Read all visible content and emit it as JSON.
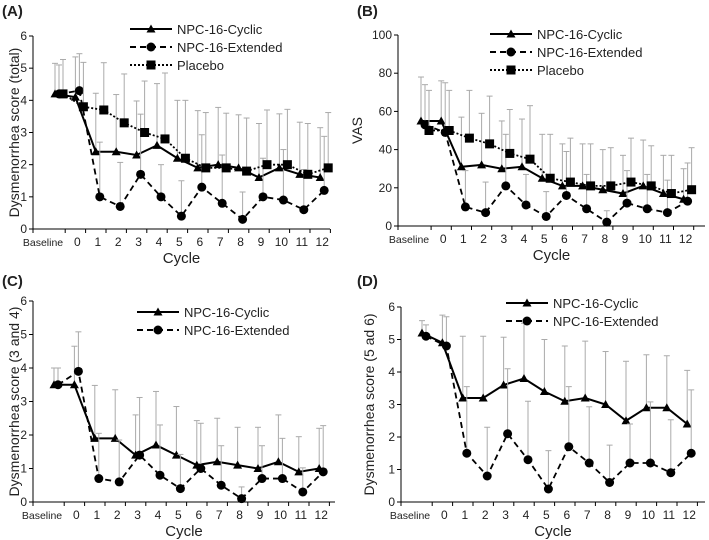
{
  "chart_data": [
    {
      "panel_label": "(A)",
      "type": "line",
      "title": "",
      "xlabel": "Cycle",
      "ylabel": "Dysmenorrhea score (total)",
      "ylim": [
        0,
        6
      ],
      "yticks": [
        0,
        1,
        2,
        3,
        4,
        5,
        6
      ],
      "categories": [
        "Baseline",
        "0",
        "1",
        "2",
        "3",
        "4",
        "5",
        "6",
        "7",
        "8",
        "9",
        "10",
        "11",
        "12"
      ],
      "legend_position": "top-right",
      "series": [
        {
          "name": "NPC-16-Cyclic",
          "marker": "triangle",
          "line": "solid",
          "values": [
            4.2,
            4.1,
            2.4,
            2.4,
            2.3,
            2.6,
            2.2,
            1.9,
            2.0,
            1.9,
            1.6,
            1.9,
            1.7,
            1.6
          ],
          "error_upper": [
            5.15,
            5.35,
            4.22,
            4.18,
            3.98,
            4.52,
            4.0,
            3.68,
            3.78,
            3.55,
            3.28,
            3.58,
            3.32,
            3.15
          ]
        },
        {
          "name": "NPC-16-Extended",
          "marker": "circle",
          "line": "dashed",
          "values": [
            4.2,
            4.3,
            1.0,
            0.7,
            1.7,
            1.0,
            0.4,
            1.3,
            0.8,
            0.3,
            1.0,
            0.9,
            0.6,
            1.2
          ],
          "error_upper": [
            5.1,
            5.45,
            2.7,
            2.07,
            3.57,
            2.0,
            1.5,
            2.93,
            2.3,
            1.15,
            2.2,
            2.47,
            1.85,
            2.88
          ]
        },
        {
          "name": "Placebo",
          "marker": "square",
          "line": "dotted",
          "values": [
            4.2,
            3.8,
            3.7,
            3.3,
            3.0,
            2.8,
            2.2,
            1.9,
            1.9,
            1.8,
            2.0,
            2.0,
            1.7,
            1.9
          ],
          "error_upper": [
            5.27,
            5.18,
            5.17,
            4.82,
            4.6,
            4.85,
            4.0,
            3.62,
            3.6,
            3.45,
            3.7,
            3.72,
            3.28,
            3.62
          ]
        }
      ]
    },
    {
      "panel_label": "(B)",
      "type": "line",
      "title": "",
      "xlabel": "Cycle",
      "ylabel": "VAS",
      "ylim": [
        0,
        100
      ],
      "yticks": [
        0,
        20,
        40,
        60,
        80,
        100
      ],
      "categories": [
        "Baseline",
        "0",
        "1",
        "2",
        "3",
        "4",
        "5",
        "6",
        "7",
        "8",
        "9",
        "10",
        "11",
        "12"
      ],
      "legend_position": "top-right",
      "series": [
        {
          "name": "NPC-16-Cyclic",
          "marker": "triangle",
          "line": "solid",
          "values": [
            55,
            55,
            31,
            32,
            30,
            31,
            25,
            21,
            21,
            19,
            17,
            21,
            17,
            14
          ],
          "error_upper": [
            78,
            76,
            57,
            59,
            55,
            56,
            48,
            43,
            43,
            40,
            37,
            45,
            37,
            30
          ]
        },
        {
          "name": "NPC-16-Extended",
          "marker": "circle",
          "line": "dashed",
          "values": [
            53,
            49,
            10,
            7,
            21,
            11,
            5,
            16,
            9,
            2,
            12,
            9,
            7,
            13
          ],
          "error_upper": [
            74,
            75,
            29,
            23,
            48,
            27,
            18,
            39,
            27,
            8,
            29,
            27,
            24,
            33
          ]
        },
        {
          "name": "Placebo",
          "marker": "square",
          "line": "dotted",
          "values": [
            50,
            50,
            46,
            43,
            38,
            35,
            25,
            23,
            21,
            21,
            23,
            21,
            17,
            19
          ],
          "error_upper": [
            71,
            71,
            71,
            68,
            61,
            63,
            48,
            46,
            43,
            41,
            46,
            42,
            37,
            41
          ]
        }
      ]
    },
    {
      "panel_label": "(C)",
      "type": "line",
      "title": "",
      "xlabel": "Cycle",
      "ylabel": "Dysmenorrhea score (3 and 4)",
      "ylim": [
        0,
        6
      ],
      "yticks": [
        0,
        1,
        2,
        3,
        4,
        5,
        6
      ],
      "categories": [
        "Baseline",
        "0",
        "1",
        "2",
        "3",
        "4",
        "5",
        "6",
        "7",
        "8",
        "9",
        "10",
        "11",
        "12"
      ],
      "legend_position": "top-right",
      "series": [
        {
          "name": "NPC-16-Cyclic",
          "marker": "triangle",
          "line": "solid",
          "values": [
            3.5,
            3.5,
            1.9,
            1.9,
            1.4,
            1.7,
            1.4,
            1.1,
            1.2,
            1.1,
            1.0,
            1.2,
            0.9,
            1.0
          ],
          "error_upper": [
            4.0,
            4.65,
            3.48,
            3.35,
            2.6,
            3.3,
            2.85,
            2.43,
            2.5,
            2.23,
            2.23,
            2.6,
            1.95,
            2.2
          ]
        },
        {
          "name": "NPC-16-Extended",
          "marker": "circle",
          "line": "dashed",
          "values": [
            3.5,
            3.9,
            0.7,
            0.6,
            1.4,
            0.8,
            0.4,
            1.0,
            0.5,
            0.1,
            0.7,
            0.7,
            0.3,
            0.9
          ],
          "error_upper": [
            4.0,
            5.08,
            2.05,
            1.85,
            3.12,
            2.3,
            1.42,
            2.35,
            1.68,
            0.45,
            1.68,
            1.9,
            1.02,
            2.28
          ]
        }
      ]
    },
    {
      "panel_label": "(D)",
      "type": "line",
      "title": "",
      "xlabel": "Cycle",
      "ylabel": "Dysmenorrhea  score (5 ad 6)",
      "ylim": [
        0,
        6
      ],
      "yticks": [
        0,
        1,
        2,
        3,
        4,
        5,
        6
      ],
      "categories": [
        "Baseline",
        "0",
        "1",
        "2",
        "3",
        "4",
        "5",
        "6",
        "7",
        "8",
        "9",
        "10",
        "11",
        "12"
      ],
      "legend_position": "top-right",
      "series": [
        {
          "name": "NPC-16-Cyclic",
          "marker": "triangle",
          "line": "solid",
          "values": [
            5.2,
            4.9,
            3.2,
            3.2,
            3.6,
            3.8,
            3.4,
            3.1,
            3.2,
            3.0,
            2.5,
            2.9,
            2.9,
            2.4
          ],
          "error_upper": [
            5.58,
            5.75,
            5.1,
            5.1,
            5.07,
            5.5,
            5.0,
            4.8,
            4.95,
            4.63,
            4.33,
            4.53,
            4.5,
            4.05
          ]
        },
        {
          "name": "NPC-16-Extended",
          "marker": "circle",
          "line": "dashed",
          "values": [
            5.1,
            4.8,
            1.5,
            0.8,
            2.1,
            1.3,
            0.4,
            1.7,
            1.2,
            0.6,
            1.2,
            1.2,
            0.9,
            1.5
          ],
          "error_upper": [
            5.45,
            5.7,
            3.55,
            2.3,
            4.1,
            3.1,
            1.58,
            3.55,
            2.93,
            1.75,
            2.4,
            3.08,
            2.53,
            3.45
          ]
        }
      ]
    }
  ]
}
